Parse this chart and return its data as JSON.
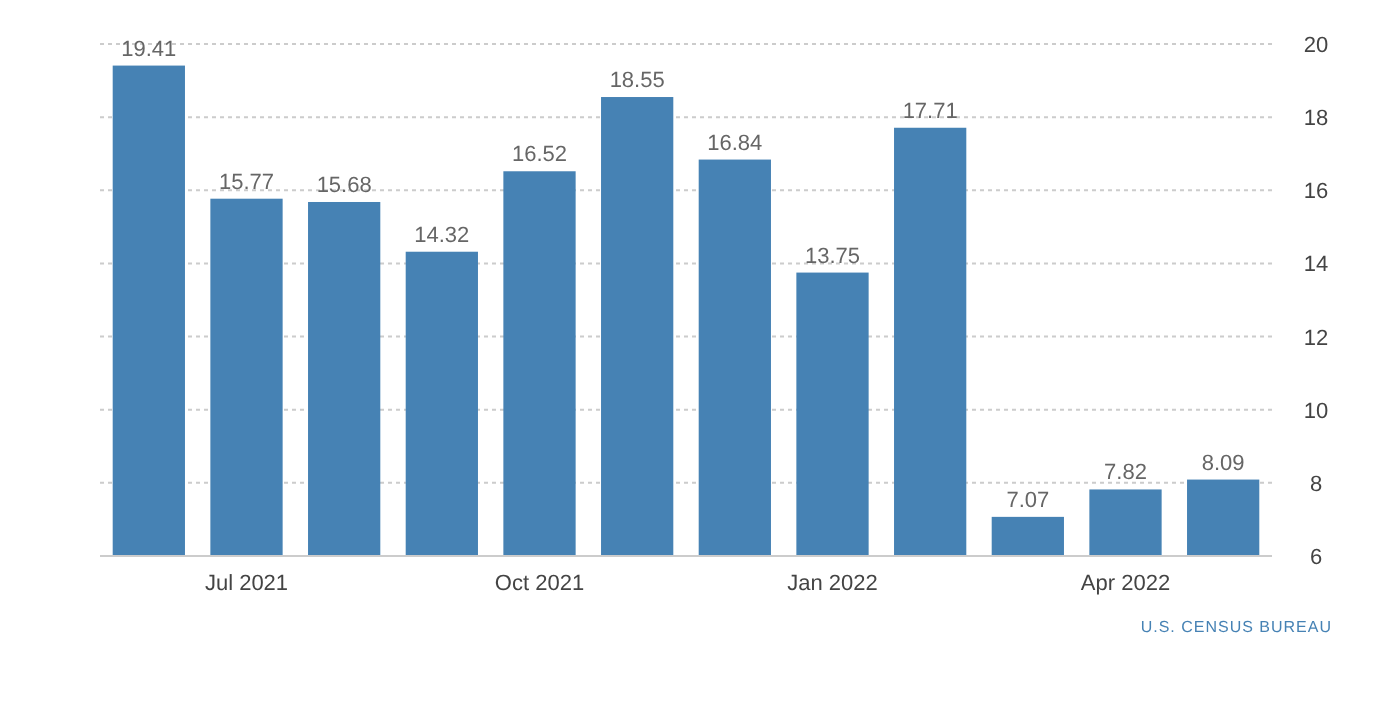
{
  "chart_data": {
    "type": "bar",
    "categories": [
      null,
      "Jul 2021",
      null,
      null,
      "Oct 2021",
      null,
      null,
      "Jan 2022",
      null,
      null,
      "Apr 2022",
      null
    ],
    "values": [
      19.41,
      15.77,
      15.68,
      14.32,
      16.52,
      18.55,
      16.84,
      13.75,
      17.71,
      7.07,
      7.82,
      8.09
    ],
    "color": "#4682b4",
    "ylim": [
      6,
      20
    ],
    "yticks": [
      6,
      8,
      10,
      12,
      14,
      16,
      18,
      20
    ],
    "grid": "y",
    "data_labels": true,
    "annotations": [
      "U.S. CENSUS BUREAU"
    ]
  }
}
